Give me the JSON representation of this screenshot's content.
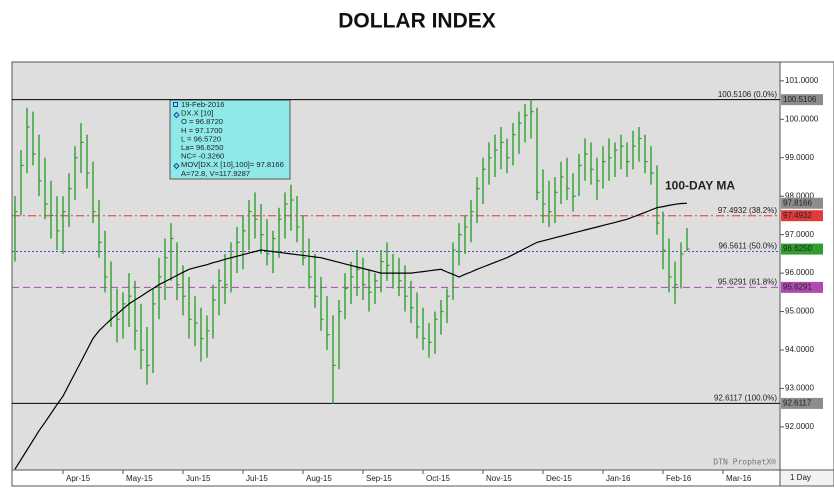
{
  "chart_data": {
    "type": "ohlc",
    "title": "DOLLAR INDEX",
    "categories": [
      null,
      null,
      null,
      null,
      null,
      null,
      null,
      null,
      "Apr-15",
      null,
      null,
      null,
      null,
      null,
      null,
      null,
      null,
      null,
      "May-15",
      null,
      null,
      null,
      null,
      null,
      null,
      null,
      null,
      null,
      "Jun-15",
      null,
      null,
      null,
      null,
      null,
      null,
      null,
      null,
      null,
      "Jul-15",
      null,
      null,
      null,
      null,
      null,
      null,
      null,
      null,
      null,
      "Aug-15",
      null,
      null,
      null,
      null,
      null,
      null,
      null,
      null,
      null,
      "Sep-15",
      null,
      null,
      null,
      null,
      null,
      null,
      null,
      null,
      null,
      "Oct-15",
      null,
      null,
      null,
      null,
      null,
      null,
      null,
      null,
      null,
      "Nov-15",
      null,
      null,
      null,
      null,
      null,
      null,
      null,
      null,
      null,
      "Dec-15",
      null,
      null,
      null,
      null,
      null,
      null,
      null,
      null,
      null,
      "Jan-16",
      null,
      null,
      null,
      null,
      null,
      null,
      null,
      null,
      null,
      "Feb-16",
      null,
      null,
      null,
      null,
      null,
      null,
      null,
      null,
      null,
      "Mar-16",
      null,
      null,
      null,
      null,
      null,
      null,
      null,
      null,
      null
    ],
    "high": [
      98.0,
      99.2,
      100.3,
      100.2,
      99.6,
      99.0,
      98.4,
      98.0,
      98.0,
      98.6,
      99.3,
      99.9,
      99.6,
      98.9,
      97.9,
      97.1,
      96.3,
      95.6,
      95.5,
      96.0,
      95.8,
      95.2,
      94.6,
      95.6,
      96.4,
      96.9,
      97.3,
      96.8,
      96.2,
      95.9,
      95.4,
      95.1,
      94.9,
      95.7,
      96.1,
      96.5,
      96.8,
      97.2,
      97.5,
      97.9,
      98.1,
      97.8,
      97.4,
      97.1,
      97.7,
      98.1,
      98.3,
      98.0,
      97.5,
      96.9,
      96.5,
      95.9,
      95.4,
      94.9,
      95.3,
      96.0,
      96.3,
      96.6,
      96.4,
      96.1,
      96.0,
      96.6,
      96.8,
      96.5,
      96.4,
      96.2,
      95.8,
      95.5,
      95.1,
      94.7,
      95.0,
      95.3,
      95.6,
      96.8,
      97.3,
      97.5,
      97.9,
      98.5,
      99.0,
      99.4,
      99.6,
      99.8,
      99.5,
      99.9,
      100.2,
      100.4,
      100.51,
      100.3,
      98.7,
      98.4,
      98.5,
      98.9,
      99.0,
      98.6,
      99.1,
      99.5,
      99.4,
      99.0,
      99.3,
      99.5,
      99.4,
      99.6,
      99.4,
      99.7,
      99.8,
      99.6,
      99.3,
      98.8,
      97.6,
      96.9,
      96.3,
      96.8,
      97.17,
      null,
      null,
      null,
      null,
      null,
      null,
      null,
      null,
      null,
      null,
      null,
      null,
      null,
      null,
      null
    ],
    "low": [
      96.3,
      97.5,
      98.6,
      98.8,
      98.0,
      97.4,
      96.9,
      96.6,
      96.5,
      97.2,
      97.9,
      98.6,
      98.2,
      97.3,
      96.4,
      95.5,
      94.6,
      94.2,
      94.3,
      94.6,
      94.0,
      93.5,
      93.1,
      93.4,
      94.8,
      95.3,
      95.8,
      95.3,
      94.9,
      94.3,
      94.1,
      93.7,
      93.8,
      94.3,
      94.9,
      95.2,
      95.5,
      96.0,
      96.1,
      96.6,
      96.9,
      96.5,
      96.2,
      96.0,
      96.4,
      96.9,
      97.1,
      96.8,
      96.2,
      95.6,
      95.1,
      94.5,
      94.0,
      92.6,
      93.5,
      94.8,
      95.2,
      95.4,
      95.3,
      95.0,
      95.2,
      95.5,
      95.8,
      95.6,
      95.4,
      95.0,
      94.7,
      94.3,
      94.0,
      93.8,
      93.9,
      94.4,
      94.7,
      95.3,
      96.2,
      96.5,
      96.8,
      97.3,
      97.8,
      98.3,
      98.5,
      98.7,
      98.6,
      98.8,
      99.1,
      99.4,
      99.5,
      97.9,
      97.3,
      97.2,
      97.3,
      97.8,
      97.9,
      97.6,
      98.0,
      98.4,
      98.3,
      97.9,
      98.2,
      98.4,
      98.5,
      98.7,
      98.5,
      98.7,
      98.9,
      98.6,
      98.3,
      97.0,
      96.1,
      95.5,
      95.2,
      95.6,
      96.572,
      null,
      null,
      null,
      null,
      null,
      null,
      null,
      null,
      null,
      null,
      null,
      null,
      null,
      null,
      null
    ],
    "close": [
      97.6,
      98.8,
      99.8,
      99.1,
      98.4,
      97.8,
      97.5,
      97.1,
      97.6,
      98.2,
      99.0,
      99.4,
      98.6,
      97.6,
      96.8,
      95.9,
      95.0,
      94.8,
      95.2,
      95.4,
      94.5,
      94.0,
      93.6,
      95.2,
      95.9,
      96.4,
      96.9,
      95.7,
      95.4,
      94.8,
      94.7,
      94.3,
      94.5,
      95.3,
      95.8,
      95.7,
      96.4,
      96.8,
      97.1,
      97.6,
      97.4,
      97.0,
      96.5,
      96.9,
      97.4,
      97.8,
      97.9,
      97.2,
      96.4,
      95.9,
      95.4,
      94.8,
      94.4,
      93.6,
      95.0,
      95.6,
      95.9,
      96.1,
      95.7,
      95.5,
      95.8,
      96.3,
      96.2,
      96.0,
      95.8,
      95.4,
      95.1,
      94.6,
      94.3,
      94.2,
      94.8,
      95.0,
      95.4,
      96.6,
      97.0,
      97.2,
      97.6,
      98.2,
      98.7,
      99.0,
      99.2,
      99.4,
      99.0,
      99.6,
      99.9,
      100.1,
      100.2,
      98.1,
      97.8,
      97.6,
      98.1,
      98.5,
      98.2,
      98.0,
      98.8,
      99.1,
      98.7,
      98.4,
      98.9,
      99.0,
      99.2,
      99.3,
      98.9,
      99.3,
      99.5,
      98.9,
      98.6,
      97.3,
      96.6,
      95.9,
      95.7,
      96.5,
      96.625,
      null,
      null,
      null,
      null,
      null,
      null,
      null,
      null,
      null,
      null,
      null,
      null,
      null,
      null,
      null
    ],
    "bar_color": "#2f9e2f",
    "moving_average": {
      "label": "100-DAY MA",
      "color": "#000000",
      "values": [
        90.9,
        91.15,
        91.4,
        91.65,
        91.9,
        92.12,
        92.35,
        92.58,
        92.8,
        93.1,
        93.4,
        93.7,
        94.0,
        94.3,
        94.5,
        94.65,
        94.8,
        94.93,
        95.07,
        95.2,
        95.3,
        95.4,
        95.5,
        95.6,
        95.7,
        95.78,
        95.86,
        95.94,
        96.02,
        96.1,
        96.14,
        96.18,
        96.22,
        96.27,
        96.31,
        96.36,
        96.4,
        96.44,
        96.48,
        96.52,
        96.56,
        96.6,
        96.58,
        96.56,
        96.54,
        96.52,
        96.5,
        96.48,
        96.46,
        96.44,
        96.42,
        96.4,
        96.36,
        96.32,
        96.28,
        96.24,
        96.2,
        96.16,
        96.12,
        96.08,
        96.04,
        96.0,
        96.0,
        96.0,
        96.0,
        96.0,
        96.0,
        96.02,
        96.04,
        96.06,
        96.08,
        96.1,
        96.03,
        95.97,
        95.9,
        95.97,
        96.03,
        96.1,
        96.16,
        96.22,
        96.28,
        96.34,
        96.4,
        96.48,
        96.56,
        96.64,
        96.72,
        96.8,
        96.84,
        96.88,
        96.92,
        96.96,
        97.0,
        97.04,
        97.08,
        97.12,
        97.16,
        97.2,
        97.24,
        97.28,
        97.32,
        97.36,
        97.4,
        97.46,
        97.52,
        97.58,
        97.64,
        97.7,
        97.73,
        97.76,
        97.79,
        97.81,
        97.8166,
        null,
        null,
        null,
        null,
        null,
        null,
        null,
        null,
        null,
        null,
        null,
        null,
        null,
        null,
        null
      ]
    },
    "ylim": [
      90.88,
      101.49
    ],
    "yticks": [
      {
        "value": 92,
        "label": "92.0000"
      },
      {
        "value": 93,
        "label": "93.0000"
      },
      {
        "value": 94,
        "label": "94.0000"
      },
      {
        "value": 95,
        "label": "95.0000"
      },
      {
        "value": 96,
        "label": "96.0000"
      },
      {
        "value": 97,
        "label": "97.0000"
      },
      {
        "value": 98,
        "label": "98.0000"
      },
      {
        "value": 99,
        "label": "99.0000"
      },
      {
        "value": 100,
        "label": "100.0000"
      },
      {
        "value": 101,
        "label": "101.0000"
      }
    ],
    "levels": [
      {
        "value": 100.5106,
        "label": "100.5106 (0.0%)",
        "color": "#000000",
        "style": "solid"
      },
      {
        "value": 97.4932,
        "label": "97.4932 (38.2%)",
        "color": "#e03a3a",
        "style": "dashdot"
      },
      {
        "value": 96.5611,
        "label": "96.5611 (50.0%)",
        "color": "#4a4ac8",
        "style": "dotted"
      },
      {
        "value": 95.6291,
        "label": "95.6291 (61.8%)",
        "color": "#b04ab0",
        "style": "dashed"
      },
      {
        "value": 92.6117,
        "label": "92.6117 (100.0%)",
        "color": "#000000",
        "style": "solid"
      }
    ],
    "price_boxes": [
      {
        "value": 100.5106,
        "label": "100.5106",
        "color": "#8c8c8c"
      },
      {
        "value": 97.8166,
        "label": "97.8166",
        "color": "#8c8c8c"
      },
      {
        "value": 97.4932,
        "label": "97.4932",
        "color": "#e03a3a"
      },
      {
        "value": 96.625,
        "label": "96.6250",
        "color": "#2f9e2f"
      },
      {
        "value": 95.6291,
        "label": "95.6291",
        "color": "#b04ab0"
      },
      {
        "value": 92.6117,
        "label": "92.6117",
        "color": "#8c8c8c"
      }
    ],
    "info_box": [
      "19-Feb-2016",
      "DX.X [10]",
      "O = 96.8720",
      "H = 97.1700",
      "L = 96.5720",
      "La= 96.6250",
      "NC= -0.3260",
      "MOV[DX.X [10],100]= 97.8166",
      "A=72.8, V=117.9287"
    ],
    "interval": "1 Day",
    "watermark": "DTN ProphetX®"
  }
}
